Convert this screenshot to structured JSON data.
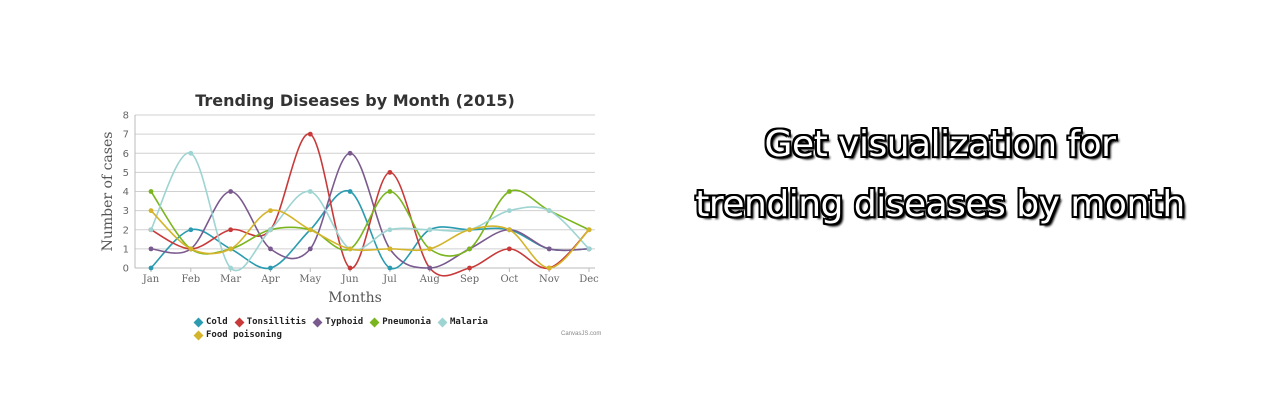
{
  "headline": "Get visualization for trending diseases by month",
  "chart_data": {
    "type": "line",
    "title": "Trending Diseases by Month (2015)",
    "xlabel": "Months",
    "ylabel": "Number of cases",
    "ylim": [
      0,
      8
    ],
    "y_ticks": [
      "0",
      "1",
      "2",
      "3",
      "4",
      "5",
      "6",
      "7",
      "8"
    ],
    "categories": [
      "Jan",
      "Feb",
      "Mar",
      "Apr",
      "May",
      "Jun",
      "Jul",
      "Aug",
      "Sep",
      "Oct",
      "Nov",
      "Dec"
    ],
    "grid": true,
    "legend_position": "bottom",
    "series": [
      {
        "name": "Cold",
        "color": "#2a9bb0",
        "values": [
          0,
          2,
          1,
          0,
          2,
          4,
          0,
          2,
          2,
          2,
          1,
          1
        ]
      },
      {
        "name": "Tonsillitis",
        "color": "#c83a3a",
        "values": [
          2,
          1,
          2,
          2,
          7,
          0,
          5,
          0,
          0,
          1,
          0,
          2
        ]
      },
      {
        "name": "Typhoid",
        "color": "#7a5a8e",
        "values": [
          1,
          1,
          4,
          1,
          1,
          6,
          1,
          0,
          1,
          2,
          1,
          1
        ]
      },
      {
        "name": "Pneumonia",
        "color": "#7ab51d",
        "values": [
          4,
          1,
          1,
          2,
          2,
          1,
          4,
          1,
          1,
          4,
          3,
          2
        ]
      },
      {
        "name": "Malaria",
        "color": "#9ed4d2",
        "values": [
          2,
          6,
          0,
          2,
          4,
          1,
          2,
          2,
          2,
          3,
          3,
          1
        ]
      },
      {
        "name": "Food poisoning",
        "color": "#d4b42a",
        "values": [
          3,
          1,
          1,
          3,
          2,
          1,
          1,
          1,
          2,
          2,
          0,
          2
        ]
      }
    ],
    "credit": "CanvasJS.com"
  }
}
